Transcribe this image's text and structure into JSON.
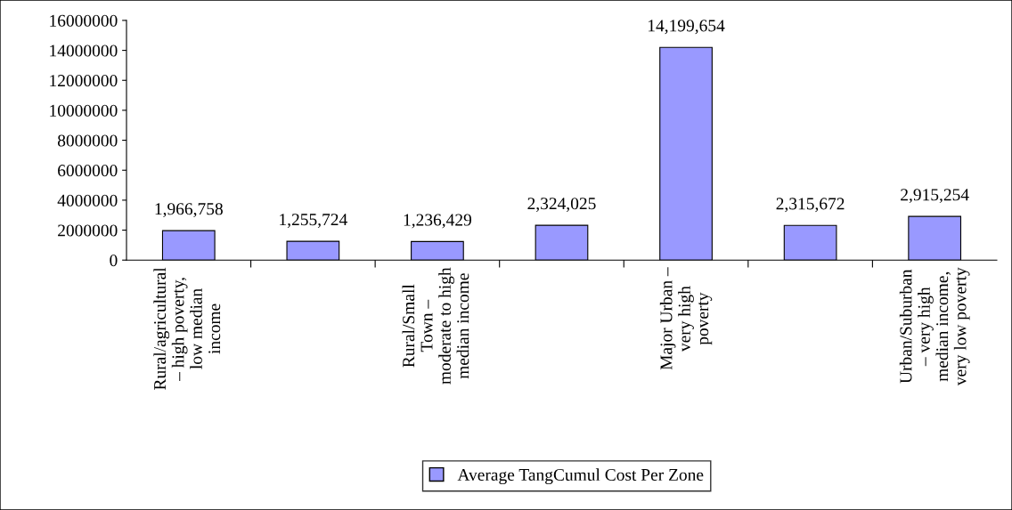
{
  "chart_data": {
    "type": "bar",
    "categories": [
      "Rural/agricultural\n– high poverty,\nlow median\nincome",
      null,
      "Rural/Small\nTown –\nmoderate to high\nmedian income",
      null,
      "Major Urban –\nvery high\npoverty",
      null,
      "Urban/Suburban\n– very high\nmedian income,\nvery low poverty"
    ],
    "series": [
      {
        "name": "Average TangCumul Cost Per Zone",
        "color": "#9999ff",
        "values": [
          1966758,
          1255724,
          1236429,
          2324025,
          14199654,
          2315672,
          2915254
        ],
        "value_labels": [
          "1,966,758",
          "1,255,724",
          "1,236,429",
          "2,324,025",
          "14,199,654",
          "2,315,672",
          "2,915,254"
        ]
      }
    ],
    "ylim": [
      0,
      16000000
    ],
    "yticks": [
      0,
      2000000,
      4000000,
      6000000,
      8000000,
      10000000,
      12000000,
      14000000,
      16000000
    ],
    "grid": false,
    "legend": "bottom"
  }
}
